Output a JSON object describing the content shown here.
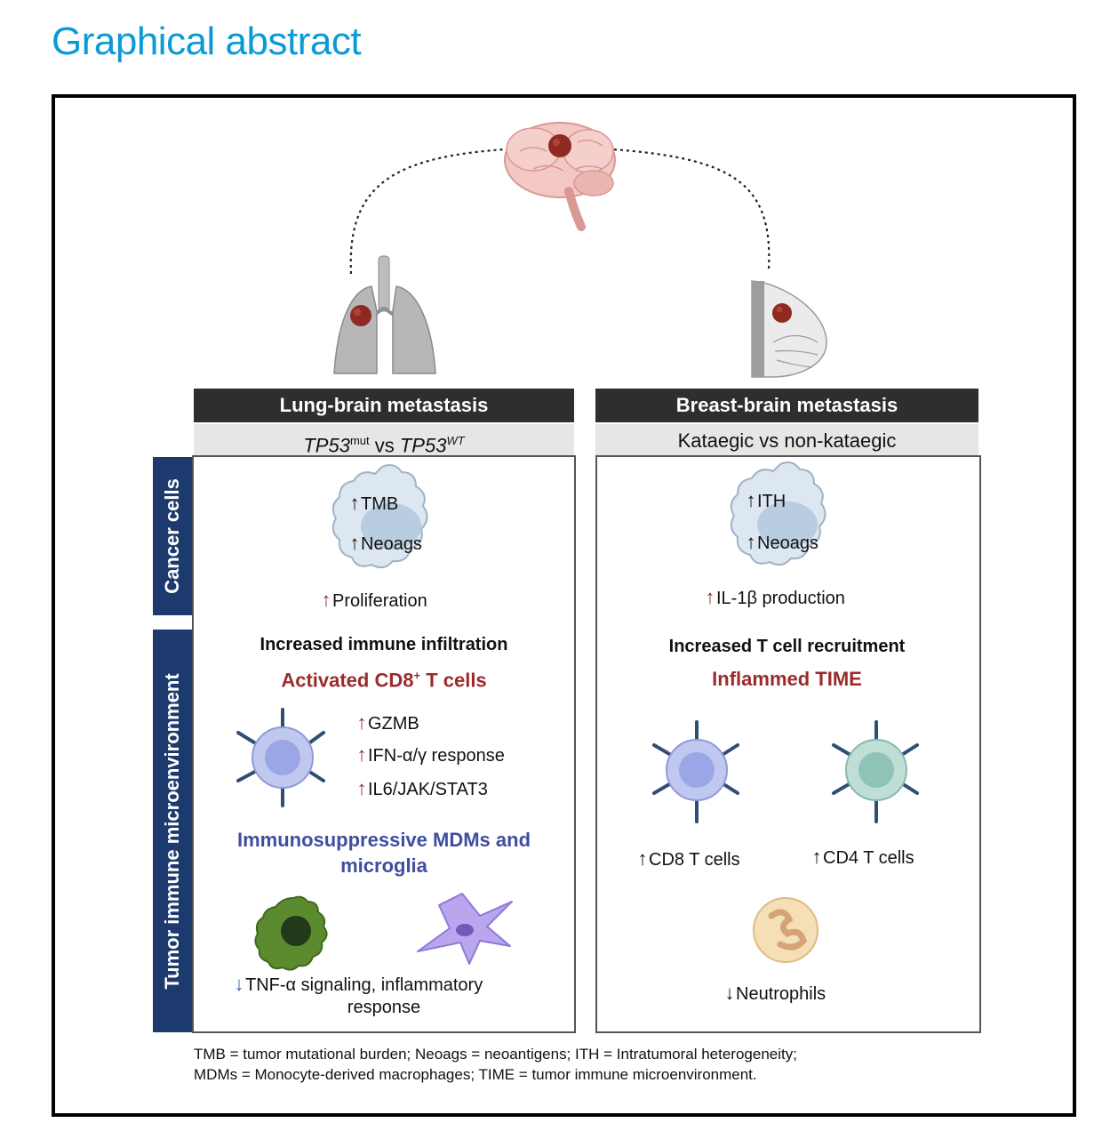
{
  "title": "Graphical abstract",
  "left": {
    "header": "Lung-brain metastasis",
    "subheader_gene": "TP53",
    "subheader_sup1": "mut",
    "subheader_vs": " vs ",
    "subheader_sup2": "WT",
    "cancer_markers": [
      "TMB",
      "Neoags"
    ],
    "proliferation": "Proliferation",
    "infiltration": "Increased immune infiltration",
    "activated_a": "Activated CD8",
    "activated_sup": "+",
    "activated_b": " T cells",
    "cd8_markers": [
      "GZMB",
      "IFN-α/γ response",
      "IL6/JAK/STAT3"
    ],
    "mdms": "Immunosuppressive MDMs and microglia",
    "tnf_line1": "TNF-α signaling, inflammatory",
    "tnf_line2": "response"
  },
  "right": {
    "header": "Breast-brain metastasis",
    "subheader": "Kataegic vs non-kataegic",
    "cancer_markers": [
      "ITH",
      "Neoags"
    ],
    "il1b": "IL-1β production",
    "recruitment": "Increased T cell recruitment",
    "inflamed": "Inflammed TIME",
    "cd8": "CD8 T cells",
    "cd4": "CD4 T cells",
    "neutrophils": "Neutrophils"
  },
  "side_labels": {
    "cancer": "Cancer cells",
    "immune": "Tumor immune microenvironment"
  },
  "footnote_line1": "TMB = tumor mutational burden; Neoags = neoantigens; ITH = Intratumoral heterogeneity;",
  "footnote_line2": "MDMs = Monocyte-derived macrophages; TIME = tumor immune microenvironment.",
  "colors": {
    "title": "#0a9ad6",
    "header_bg": "#2e2e2e",
    "side_bg": "#1d3a6e",
    "activated_red": "#9b2b2b",
    "mdm_blue": "#3f4ea0",
    "tumor": "#8e2a22"
  }
}
